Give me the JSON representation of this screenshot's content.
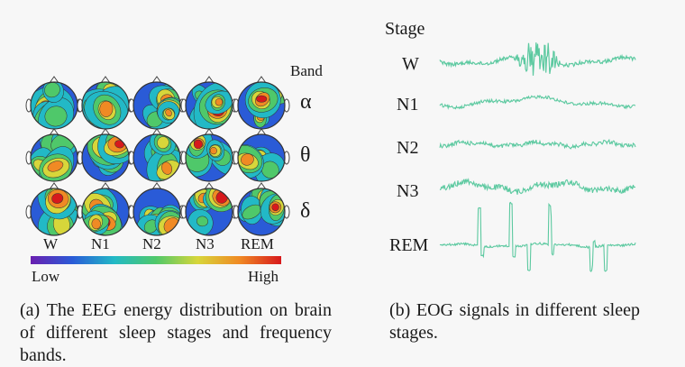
{
  "panel_a": {
    "band_header": "Band",
    "bands": [
      "α",
      "θ",
      "δ"
    ],
    "stages": [
      "W",
      "N1",
      "N2",
      "N3",
      "REM"
    ],
    "colorbar": {
      "low_label": "Low",
      "high_label": "High",
      "colormap": [
        "#6a1fb0",
        "#2a5bd7",
        "#22b9c6",
        "#4fc86a",
        "#d7d63a",
        "#f08a24",
        "#d7191c"
      ]
    },
    "caption": "(a) The EEG energy distribution on brain of different sleep stages and frequency bands."
  },
  "panel_b": {
    "stage_header": "Stage",
    "stages": [
      "W",
      "N1",
      "N2",
      "N3",
      "REM"
    ],
    "signal_color": "#5cc9a0",
    "caption": "(b) EOG signals in different sleep stages."
  }
}
